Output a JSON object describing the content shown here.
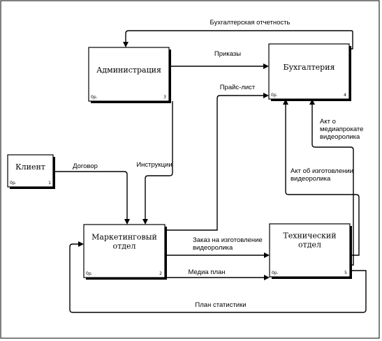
{
  "boxes": {
    "admin": {
      "title": [
        "Администрация"
      ],
      "id_left": "0р.",
      "id_right": "3"
    },
    "buh": {
      "title": [
        "Бухгалтерия"
      ],
      "id_left": "0р.",
      "id_right": "4"
    },
    "client": {
      "title": [
        "Клиент"
      ],
      "id_left": "0р.",
      "id_right": "1"
    },
    "mkt": {
      "title": [
        "Маркетинговый",
        "отдел"
      ],
      "id_left": "0р.",
      "id_right": "2"
    },
    "tech": {
      "title": [
        "Технический",
        "отдел"
      ],
      "id_left": "0р.",
      "id_right": "5"
    }
  },
  "arrows": {
    "buh_report": [
      "Бухгалтерская отчетность"
    ],
    "orders": [
      "Приказы"
    ],
    "price_list": [
      "Прайс-лист"
    ],
    "contract": [
      "Договор"
    ],
    "instructions": [
      "Инструкции"
    ],
    "rental_act": [
      "Акт о",
      "медиапрокате",
      "видеоролика"
    ],
    "production_act": [
      "Акт об изготовлении",
      "видеоролика"
    ],
    "video_order": [
      "Заказ на изготовление",
      "видеоролика"
    ],
    "media_plan": [
      "Медиа план"
    ],
    "stats_plan": [
      "План статистики"
    ]
  }
}
